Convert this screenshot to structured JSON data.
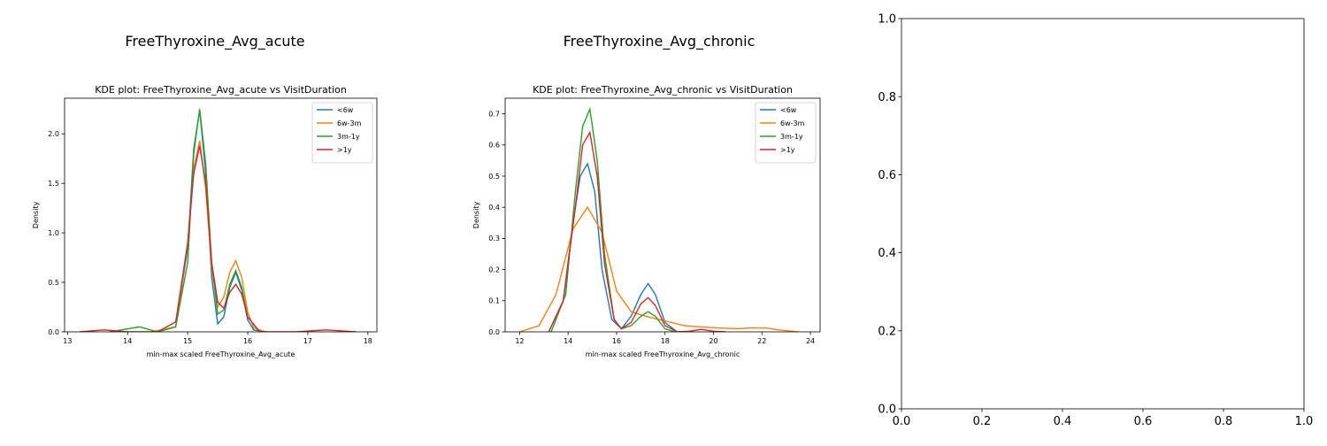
{
  "chart_data": [
    {
      "type": "line",
      "panel_title": "FreeThyroxine_Avg_acute",
      "title": "KDE plot:  FreeThyroxine_Avg_acute vs VisitDuration",
      "xlabel": "min-max scaled FreeThyroxine_Avg_acute",
      "ylabel": "Density",
      "xlim": [
        12.95,
        18.15
      ],
      "ylim": [
        0,
        2.36
      ],
      "xticks": [
        13,
        14,
        15,
        16,
        17,
        18
      ],
      "yticks": [
        0.0,
        0.5,
        1.0,
        1.5,
        2.0
      ],
      "ytick_format": 1,
      "legend_position": "upper right",
      "series": [
        {
          "name": "<6w",
          "color": "#1f77b4",
          "x": [
            14.4,
            14.8,
            15.0,
            15.1,
            15.2,
            15.3,
            15.4,
            15.5,
            15.6,
            15.7,
            15.8,
            15.9,
            16.0,
            16.1,
            16.3
          ],
          "y": [
            0.0,
            0.05,
            0.85,
            1.85,
            2.24,
            1.6,
            0.55,
            0.08,
            0.15,
            0.45,
            0.6,
            0.42,
            0.12,
            0.02,
            0.0
          ]
        },
        {
          "name": "6w-3m",
          "color": "#ff7f0e",
          "x": [
            14.4,
            14.8,
            15.0,
            15.1,
            15.2,
            15.3,
            15.4,
            15.5,
            15.6,
            15.7,
            15.8,
            15.9,
            16.0,
            16.1,
            16.3
          ],
          "y": [
            0.0,
            0.05,
            0.9,
            1.65,
            1.93,
            1.45,
            0.65,
            0.25,
            0.35,
            0.6,
            0.72,
            0.55,
            0.2,
            0.04,
            0.0
          ]
        },
        {
          "name": "3m-1y",
          "color": "#2ca02c",
          "x": [
            13.7,
            14.2,
            14.5,
            14.8,
            15.0,
            15.1,
            15.2,
            15.3,
            15.4,
            15.5,
            15.6,
            15.7,
            15.8,
            15.9,
            16.0,
            16.2
          ],
          "y": [
            0.0,
            0.05,
            0.0,
            0.05,
            0.7,
            1.8,
            2.25,
            1.7,
            0.7,
            0.18,
            0.22,
            0.48,
            0.62,
            0.45,
            0.15,
            0.0
          ]
        },
        {
          "name": ">1y",
          "color": "#d62728",
          "x": [
            13.2,
            13.6,
            14.0,
            14.5,
            14.8,
            15.0,
            15.1,
            15.2,
            15.3,
            15.4,
            15.5,
            15.6,
            15.7,
            15.8,
            15.9,
            16.0,
            16.2,
            16.8,
            17.3,
            17.8
          ],
          "y": [
            0.0,
            0.02,
            0.0,
            0.0,
            0.1,
            0.9,
            1.6,
            1.88,
            1.5,
            0.7,
            0.3,
            0.24,
            0.4,
            0.48,
            0.38,
            0.15,
            0.0,
            0.0,
            0.02,
            0.0
          ]
        }
      ]
    },
    {
      "type": "line",
      "panel_title": "FreeThyroxine_Avg_chronic",
      "title": "KDE plot:  FreeThyroxine_Avg_chronic vs VisitDuration",
      "xlabel": "min-max scaled FreeThyroxine_Avg_chronic",
      "ylabel": "Density",
      "xlim": [
        11.4,
        24.4
      ],
      "ylim": [
        0,
        0.75
      ],
      "xticks": [
        12,
        14,
        16,
        18,
        20,
        22,
        24
      ],
      "yticks": [
        0.0,
        0.1,
        0.2,
        0.3,
        0.4,
        0.5,
        0.6,
        0.7
      ],
      "ytick_format": 1,
      "legend_position": "upper right",
      "series": [
        {
          "name": "<6w",
          "color": "#1f77b4",
          "x": [
            13.2,
            13.8,
            14.2,
            14.5,
            14.8,
            15.1,
            15.4,
            15.8,
            16.2,
            16.6,
            17.0,
            17.3,
            17.6,
            18.0,
            18.5
          ],
          "y": [
            0.0,
            0.1,
            0.35,
            0.5,
            0.54,
            0.45,
            0.2,
            0.04,
            0.01,
            0.05,
            0.12,
            0.155,
            0.12,
            0.03,
            0.0
          ]
        },
        {
          "name": "6w-3m",
          "color": "#ff7f0e",
          "x": [
            12.0,
            12.8,
            13.5,
            14.2,
            14.8,
            15.4,
            16.0,
            16.6,
            17.2,
            18.0,
            18.8,
            19.6,
            20.4,
            21.0,
            21.6,
            22.2,
            22.8,
            23.5
          ],
          "y": [
            0.0,
            0.02,
            0.12,
            0.33,
            0.4,
            0.32,
            0.13,
            0.065,
            0.05,
            0.035,
            0.02,
            0.015,
            0.012,
            0.01,
            0.013,
            0.012,
            0.005,
            0.0
          ]
        },
        {
          "name": "3m-1y",
          "color": "#2ca02c",
          "x": [
            13.3,
            13.9,
            14.3,
            14.6,
            14.9,
            15.2,
            15.5,
            15.9,
            16.2,
            16.6,
            17.0,
            17.3,
            17.6,
            18.0,
            18.4
          ],
          "y": [
            0.0,
            0.12,
            0.45,
            0.66,
            0.715,
            0.55,
            0.25,
            0.04,
            0.01,
            0.02,
            0.05,
            0.065,
            0.05,
            0.01,
            0.0
          ]
        },
        {
          "name": ">1y",
          "color": "#d62728",
          "x": [
            13.2,
            13.8,
            14.3,
            14.6,
            14.9,
            15.2,
            15.5,
            15.9,
            16.2,
            16.6,
            17.0,
            17.3,
            17.6,
            18.0,
            18.5,
            19.0,
            19.5,
            20.0,
            20.5
          ],
          "y": [
            0.0,
            0.1,
            0.4,
            0.6,
            0.64,
            0.5,
            0.22,
            0.04,
            0.01,
            0.03,
            0.09,
            0.11,
            0.085,
            0.02,
            0.0,
            0.002,
            0.008,
            0.002,
            0.0
          ]
        }
      ]
    },
    {
      "type": "line",
      "panel_title": "",
      "title": "",
      "xlabel": "",
      "ylabel": "",
      "xlim": [
        0,
        1
      ],
      "ylim": [
        0,
        1
      ],
      "xticks": [
        0.0,
        0.2,
        0.4,
        0.6,
        0.8,
        1.0
      ],
      "yticks": [
        0.0,
        0.2,
        0.4,
        0.6,
        0.8,
        1.0
      ],
      "ytick_format": 1,
      "legend_position": "",
      "series": []
    }
  ]
}
